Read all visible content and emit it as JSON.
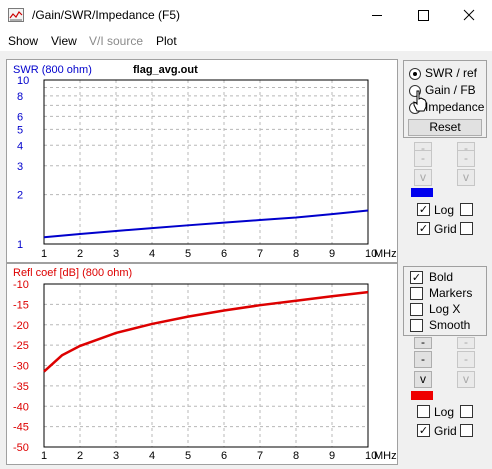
{
  "window": {
    "title": "/Gain/SWR/Impedance (F5)",
    "minimize_glyph": "—",
    "maximize_glyph": "☐",
    "close_glyph": "✕"
  },
  "menu": [
    "Show",
    "View",
    "V/I source",
    "Plot"
  ],
  "top_graph": {
    "ylabel": "SWR (800 ohm)",
    "file": "flag_avg.out",
    "ytick_labels": [
      "10",
      "8",
      "6",
      "5",
      "4",
      "3",
      "2",
      "1"
    ],
    "xtick_labels": [
      "1",
      "2",
      "3",
      "4",
      "5",
      "6",
      "7",
      "8",
      "9",
      "10"
    ],
    "xunit": "MHz",
    "color": "#0000cc"
  },
  "bottom_graph": {
    "ylabel": "Refl coef [dB] (800 ohm)",
    "ytick_labels": [
      "-10",
      "-15",
      "-20",
      "-25",
      "-30",
      "-35",
      "-40",
      "-45",
      "-50"
    ],
    "xtick_labels": [
      "1",
      "2",
      "3",
      "4",
      "5",
      "6",
      "7",
      "8",
      "9",
      "10"
    ],
    "xunit": "MHz",
    "color": "#dd0000"
  },
  "top_panel": {
    "radios": [
      {
        "label": "SWR / ref",
        "checked": true
      },
      {
        "label": "Gain / FB",
        "checked": false
      },
      {
        "label": "Impedance",
        "checked": false
      }
    ],
    "reset_label": "Reset",
    "arrows": [
      "-",
      "-",
      "-",
      "-",
      "v",
      "v"
    ],
    "log_label": "Log",
    "log_checked": true,
    "grid_label": "Grid",
    "grid_checked": true,
    "color": "#0000ee"
  },
  "bottom_panel": {
    "options": [
      {
        "label": "Bold",
        "checked": true
      },
      {
        "label": "Markers",
        "checked": false
      },
      {
        "label": "Log X",
        "checked": false
      },
      {
        "label": "Smooth",
        "checked": false
      }
    ],
    "arrows": [
      "-",
      "-",
      "-",
      "-",
      "v",
      "v"
    ],
    "log_label": "Log",
    "log_checked": false,
    "grid_label": "Grid",
    "grid_checked": true,
    "color": "#ee0000"
  },
  "chart_data": [
    {
      "type": "line",
      "ylabel": "SWR (800 ohm)",
      "xlabel": "MHz",
      "xlim": [
        1,
        10
      ],
      "ylim": [
        1,
        10
      ],
      "yscale": "log",
      "grid": true,
      "series": [
        {
          "x": [
            1,
            2,
            3,
            4,
            5,
            6,
            7,
            8,
            9,
            10
          ],
          "values": [
            1.1,
            1.15,
            1.2,
            1.25,
            1.3,
            1.35,
            1.4,
            1.45,
            1.52,
            1.6
          ]
        }
      ]
    },
    {
      "type": "line",
      "ylabel": "Refl coef [dB] (800 ohm)",
      "xlabel": "MHz",
      "xlim": [
        1,
        10
      ],
      "ylim": [
        -50,
        -10
      ],
      "grid": true,
      "series": [
        {
          "x": [
            1,
            1.5,
            2,
            3,
            4,
            5,
            6,
            7,
            8,
            9,
            10
          ],
          "values": [
            -31.5,
            -27.5,
            -25.2,
            -22,
            -19.8,
            -18,
            -16.5,
            -15.2,
            -14.1,
            -13,
            -12
          ]
        }
      ]
    }
  ]
}
